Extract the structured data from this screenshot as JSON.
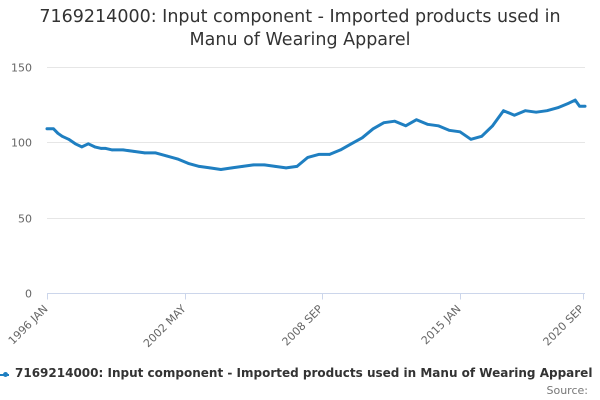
{
  "title_lines": [
    "7169214000: Input component - Imported products used in",
    "Manu of Wearing Apparel"
  ],
  "legend": {
    "label": "7169214000: Input component - Imported products used in Manu of Wearing Apparel"
  },
  "source": {
    "label": "Source:"
  },
  "colors": {
    "series": "#1f7fc1",
    "grid": "#e6e6e6",
    "axis": "#ccd6eb"
  },
  "chart_data": {
    "type": "line",
    "title": "7169214000: Input component - Imported products used in Manu of Wearing Apparel",
    "xlabel": "",
    "ylabel": "",
    "ylim": [
      0,
      150
    ],
    "yticks": [
      0,
      50,
      100,
      150
    ],
    "xlim": [
      1996.0,
      2020.75
    ],
    "xticks": [
      {
        "value": 1996.0,
        "label": "1996 JAN"
      },
      {
        "value": 2002.33,
        "label": "2002 MAY"
      },
      {
        "value": 2008.67,
        "label": "2008 SEP"
      },
      {
        "value": 2015.0,
        "label": "2015 JAN"
      },
      {
        "value": 2020.67,
        "label": "2020 SEP"
      }
    ],
    "series": [
      {
        "name": "7169214000: Input component - Imported products used in Manu of Wearing Apparel",
        "x": [
          1996.0,
          1996.3,
          1996.5,
          1996.7,
          1997.0,
          1997.3,
          1997.6,
          1997.9,
          1998.2,
          1998.5,
          1998.7,
          1999.0,
          1999.5,
          2000.0,
          2000.5,
          2001.0,
          2001.5,
          2002.0,
          2002.5,
          2003.0,
          2003.5,
          2004.0,
          2004.5,
          2005.0,
          2005.5,
          2006.0,
          2006.5,
          2007.0,
          2007.5,
          2008.0,
          2008.5,
          2009.0,
          2009.5,
          2010.0,
          2010.5,
          2011.0,
          2011.5,
          2012.0,
          2012.5,
          2013.0,
          2013.5,
          2014.0,
          2014.5,
          2015.0,
          2015.5,
          2016.0,
          2016.5,
          2017.0,
          2017.5,
          2018.0,
          2018.5,
          2019.0,
          2019.5,
          2020.0,
          2020.3,
          2020.5,
          2020.75
        ],
        "values": [
          109,
          109,
          106,
          104,
          102,
          99,
          97,
          99,
          97,
          96,
          96,
          95,
          95,
          94,
          93,
          93,
          91,
          89,
          86,
          84,
          83,
          82,
          83,
          84,
          85,
          85,
          84,
          83,
          84,
          90,
          92,
          92,
          95,
          99,
          103,
          109,
          113,
          114,
          111,
          115,
          112,
          111,
          108,
          107,
          102,
          104,
          111,
          121,
          118,
          121,
          120,
          121,
          123,
          126,
          128,
          124,
          124
        ]
      }
    ]
  }
}
